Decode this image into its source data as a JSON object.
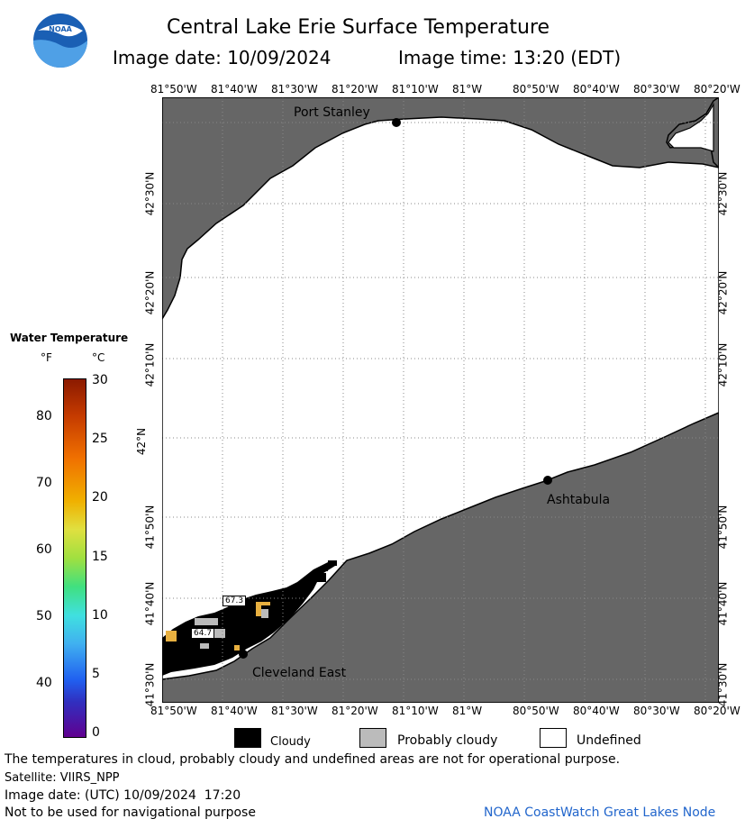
{
  "header": {
    "title": "Central Lake Erie Surface Temperature",
    "image_date": "Image date: 10/09/2024",
    "image_time": "Image time: 13:20 (EDT)",
    "logo_text": "NOAA"
  },
  "map": {
    "lon_labels": [
      "81°50'W",
      "81°40'W",
      "81°30'W",
      "81°20'W",
      "81°10'W",
      "81°W",
      "80°50'W",
      "80°40'W",
      "80°30'W",
      "80°20'W"
    ],
    "lat_labels": [
      "42°30'N",
      "42°20'N",
      "42°10'N",
      "42°N",
      "41°50'N",
      "41°40'N",
      "41°30'N"
    ],
    "places": {
      "port_stanley": "Port Stanley",
      "ashtabula": "Ashtabula",
      "cleveland_east": "Cleveland East"
    },
    "temp_labels": [
      "67.3",
      "64.7"
    ],
    "colors": {
      "land": "#666666",
      "water_undefined": "#ffffff",
      "cloudy": "#000000",
      "probably_cloudy": "#bbbbbb",
      "warm_water": "#e8b040"
    }
  },
  "colorbar": {
    "title": "Water Temperature",
    "f_unit": "°F",
    "c_unit": "°C",
    "f_ticks": [
      "80",
      "70",
      "60",
      "50",
      "40"
    ],
    "c_ticks": [
      "30",
      "25",
      "20",
      "15",
      "10",
      "5",
      "0"
    ]
  },
  "legend": {
    "cloudy": "Cloudy",
    "probably_cloudy": "Probably cloudy",
    "undefined": "Undefined"
  },
  "footer": {
    "warning": "The temperatures in cloud, probably cloudy and undefined areas are not for operational purpose.",
    "satellite": "Satellite: VIIRS_NPP",
    "utc_date": "Image date: (UTC) 10/09/2024  17:20",
    "nav_warning": "Not to be used for navigational purpose",
    "credit": "NOAA CoastWatch Great Lakes Node"
  }
}
